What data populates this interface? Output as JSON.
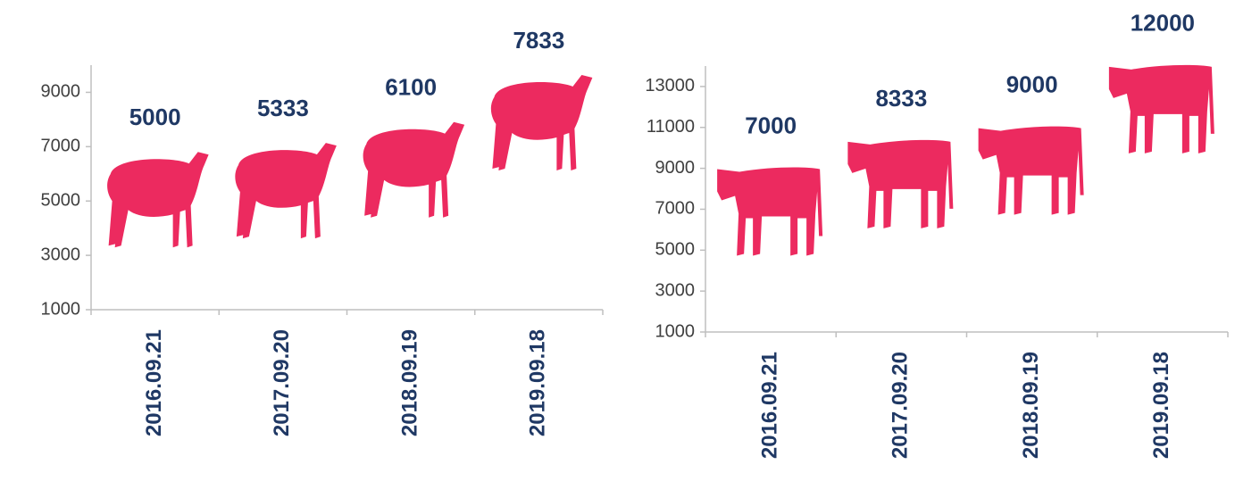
{
  "chart_data": [
    {
      "type": "pictograph",
      "icon": "sheep",
      "color": "#ec2a5f",
      "categories": [
        "2016.09.21",
        "2017.09.20",
        "2018.09.19",
        "2019.09.18"
      ],
      "values": [
        5000,
        5333,
        6100,
        7833
      ],
      "ylim": [
        1000,
        10000
      ],
      "yticks": [
        1000,
        3000,
        5000,
        7000,
        9000
      ]
    },
    {
      "type": "pictograph",
      "icon": "cow",
      "color": "#ec2a5f",
      "categories": [
        "2016.09.21",
        "2017.09.20",
        "2018.09.19",
        "2019.09.18"
      ],
      "values": [
        7000,
        8333,
        9000,
        12000
      ],
      "ylim": [
        1000,
        14000
      ],
      "yticks": [
        1000,
        3000,
        5000,
        7000,
        9000,
        11000,
        13000
      ]
    }
  ]
}
